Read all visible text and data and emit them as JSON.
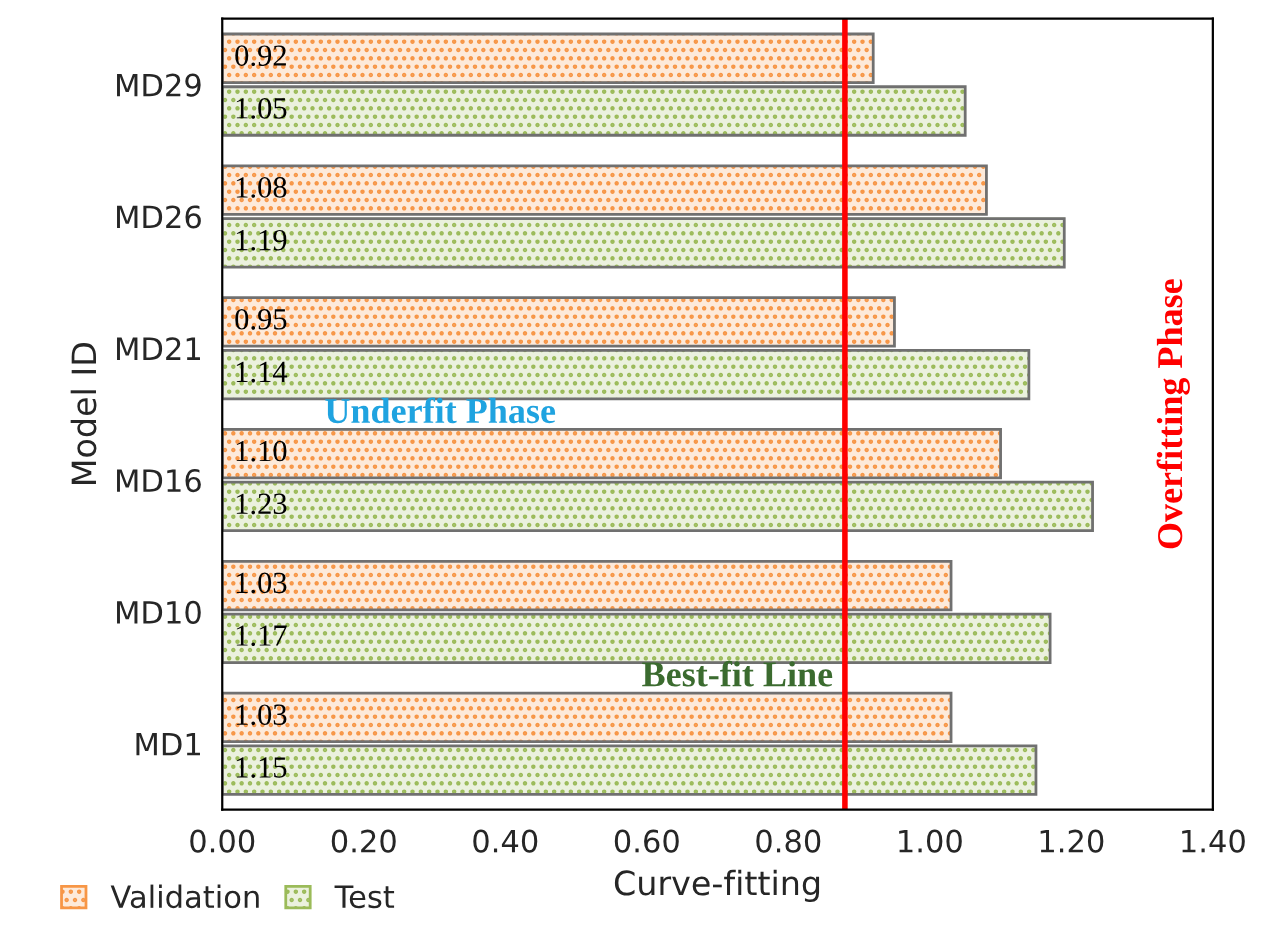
{
  "chart_data": {
    "type": "bar",
    "orientation": "horizontal",
    "xlabel": "Curve-fitting",
    "ylabel": "Model ID",
    "categories": [
      "MD29",
      "MD26",
      "MD21",
      "MD16",
      "MD10",
      "MD1"
    ],
    "series": [
      {
        "name": "Validation",
        "color": "#f79646",
        "values": [
          0.92,
          1.08,
          0.95,
          1.1,
          1.03,
          1.03
        ],
        "value_labels": [
          "0.92",
          "1.08",
          "0.95",
          "1.10",
          "1.03",
          "1.03"
        ]
      },
      {
        "name": "Test",
        "color": "#9bbb59",
        "values": [
          1.05,
          1.19,
          1.14,
          1.23,
          1.17,
          1.15
        ],
        "value_labels": [
          "1.05",
          "1.19",
          "1.14",
          "1.23",
          "1.17",
          "1.15"
        ]
      }
    ],
    "xlim": [
      0,
      1.4
    ],
    "xticks": [
      {
        "value": 0,
        "label": "0.00"
      },
      {
        "value": 0.2,
        "label": "0.20"
      },
      {
        "value": 0.4,
        "label": "0.40"
      },
      {
        "value": 0.6,
        "label": "0.60"
      },
      {
        "value": 0.8,
        "label": "0.80"
      },
      {
        "value": 1.0,
        "label": "1.00"
      },
      {
        "value": 1.2,
        "label": "1.20"
      },
      {
        "value": 1.4,
        "label": "1.40"
      }
    ],
    "ref_lines": [
      {
        "axis": "x",
        "value": 0.88,
        "color": "#ff0000"
      }
    ],
    "annotations": [
      "Underfit Phase",
      "Best-fit Line",
      "Overfitting Phase"
    ],
    "legend": "bottom left",
    "grid": false
  }
}
